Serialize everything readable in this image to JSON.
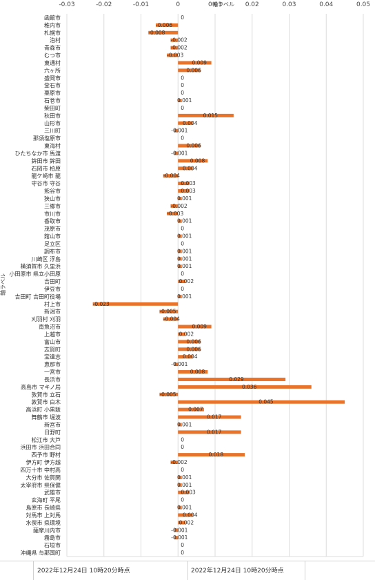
{
  "chart_data": {
    "type": "bar",
    "orientation": "horizontal",
    "xlabel": "軸ラベル",
    "ylabel": "軸ラベル",
    "xlim": [
      -0.03,
      0.05
    ],
    "xticks": [
      "-0.03",
      "-0.02",
      "-0.01",
      "0",
      "0.01",
      "0.02",
      "0.03",
      "0.04",
      "0.05"
    ],
    "grid": true,
    "bar_color": "#e8732a",
    "categories": [
      "函館市",
      "稚内市",
      "札幌市",
      "泊村",
      "青森市",
      "むつ市",
      "東通村",
      "六ヶ所",
      "盛岡市",
      "釜石市",
      "栗原市",
      "石巻市",
      "柴田町",
      "秋田市",
      "山形市",
      "三川町",
      "那須塩原市",
      "東海村",
      "ひたちなか市 馬渡",
      "鉾田市 鉾田",
      "石岡市 柏原",
      "龍ケ崎市 龍",
      "守谷市 守谷",
      "熊谷市",
      "狭山市",
      "三郷市",
      "市川市",
      "香取市",
      "茂原市",
      "館山市",
      "足立区",
      "調布市",
      "川崎区 浮島",
      "横須賀市 久里浜",
      "小田原市 県立小田原",
      "吉田町",
      "伊豆市",
      "吉田町 吉田町役場",
      "村上市",
      "新潟市",
      "刈羽村 刈羽",
      "南魚沼市",
      "上越市",
      "富山市",
      "志賀町",
      "宝達志",
      "恵那市",
      "一宮市",
      "長浜市",
      "高島市 マキノ局",
      "敦賀市 立石",
      "敦賀市 白木",
      "高浜町 小黒飯",
      "舞鶴市 堀波",
      "新宮市",
      "日野町",
      "松江市 大芦",
      "浜田市 浜田合同",
      "西予市 野村",
      "伊方町 伊方越",
      "四万十市 中村高",
      "大分市 佐賀関",
      "太宰府市 県保健",
      "武雄市",
      "玄海町 平尾",
      "島原市 長崎県",
      "対馬市 上対馬",
      "水俣市 県環境",
      "薩摩川内市",
      "霧島市",
      "石垣市",
      "沖縄県 与那国町"
    ],
    "values": [
      0,
      -0.006,
      -0.008,
      -0.002,
      -0.002,
      -0.003,
      0.009,
      0.006,
      0,
      0,
      0,
      0.001,
      0,
      0.015,
      0.004,
      -0.001,
      0,
      0.006,
      -0.001,
      0.008,
      0.004,
      -0.004,
      0.003,
      0.003,
      0.001,
      -0.002,
      -0.003,
      0.001,
      0,
      0.001,
      0,
      0.001,
      0.001,
      0.001,
      0,
      0.002,
      0,
      0.001,
      -0.023,
      -0.005,
      -0.004,
      0.009,
      0.002,
      0.006,
      0.006,
      0.004,
      -0.001,
      0.008,
      0.029,
      0.036,
      -0.005,
      0.045,
      0.007,
      0.017,
      0.001,
      0.017,
      0,
      0,
      0.018,
      -0.002,
      0,
      0.001,
      0.001,
      0.003,
      0,
      0.001,
      0.004,
      0.002,
      -0.001,
      -0.001,
      0,
      0
    ],
    "labels": [
      "0",
      "-0.006",
      "-0.008",
      "-0.002",
      "-0.002",
      "-0.003",
      "0.009",
      "0.006",
      "0",
      "0",
      "0",
      "0.001",
      "0",
      "0.015",
      "0.004",
      "-0.001",
      "0",
      "0.006",
      "-0.001",
      "0.008",
      "0.004",
      "-0.004",
      "0.003",
      "0.003",
      "0.001",
      "-0.002",
      "-0.003",
      "0.001",
      "0",
      "0.001",
      "0",
      "0.001",
      "0.001",
      "0.001",
      "0",
      "0.002",
      "0",
      "0.001",
      "-0.023",
      "-0.005",
      "-0.004",
      "0.009",
      "0.002",
      "0.006",
      "0.006",
      "0.004",
      "-0.001",
      "0.008",
      "0.029",
      "0.036",
      "-0.005",
      "0.045",
      "0.007",
      "0.017",
      "0.001",
      "0.017",
      "0",
      "0",
      "0.018",
      "-0.002",
      "0",
      "0.001",
      "0.001",
      "0.003",
      "0",
      "0.001",
      "0.004",
      "0.002",
      "-0.001",
      "-0.001",
      "0",
      "0"
    ]
  },
  "footer": {
    "left": "2022年12月24日 10時20分時点",
    "right": "2022年12月24日 10時20分時点"
  }
}
